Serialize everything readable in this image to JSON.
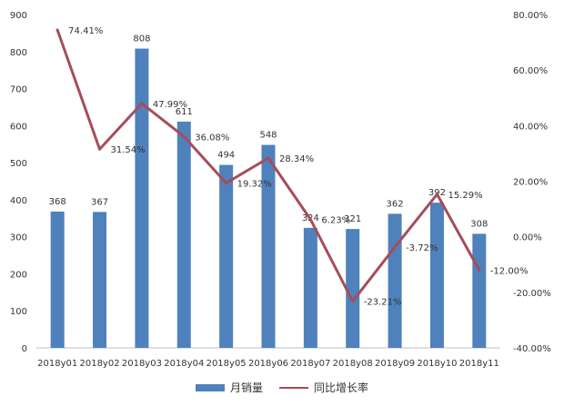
{
  "chart_data": {
    "type": "bar",
    "categories": [
      "2018y01",
      "2018y02",
      "2018y03",
      "2018y04",
      "2018y05",
      "2018y06",
      "2018y07",
      "2018y08",
      "2018y09",
      "2018y10",
      "2018y11"
    ],
    "series": [
      {
        "name": "月销量",
        "type": "bar",
        "axis": "left",
        "values": [
          368,
          367,
          808,
          611,
          494,
          548,
          324,
          321,
          362,
          392,
          308
        ],
        "labels": [
          "368",
          "367",
          "808",
          "611",
          "494",
          "548",
          "324",
          "321",
          "362",
          "392",
          "308"
        ],
        "color": "#4f81bd"
      },
      {
        "name": "同比增长率",
        "type": "line",
        "axis": "right",
        "values": [
          74.41,
          31.54,
          47.99,
          36.08,
          19.32,
          28.34,
          6.23,
          -23.21,
          -3.72,
          15.29,
          -12.0
        ],
        "labels": [
          "74.41%",
          "31.54%",
          "47.99%",
          "36.08%",
          "19.32%",
          "28.34%",
          "6.23%",
          "-23.21%",
          "-3.72%",
          "15.29%",
          "-12.00%"
        ],
        "color": "#a64d5a"
      }
    ],
    "title": "",
    "xlabel": "",
    "ylabel": "",
    "ylim": [
      0,
      900
    ],
    "y_ticks": [
      0,
      100,
      200,
      300,
      400,
      500,
      600,
      700,
      800,
      900
    ],
    "y2lim": [
      -40,
      80
    ],
    "y2_ticks": [
      "-40.00%",
      "-20.00%",
      "0.00%",
      "20.00%",
      "40.00%",
      "60.00%",
      "80.00%"
    ],
    "grid": false,
    "legend_position": "bottom"
  }
}
